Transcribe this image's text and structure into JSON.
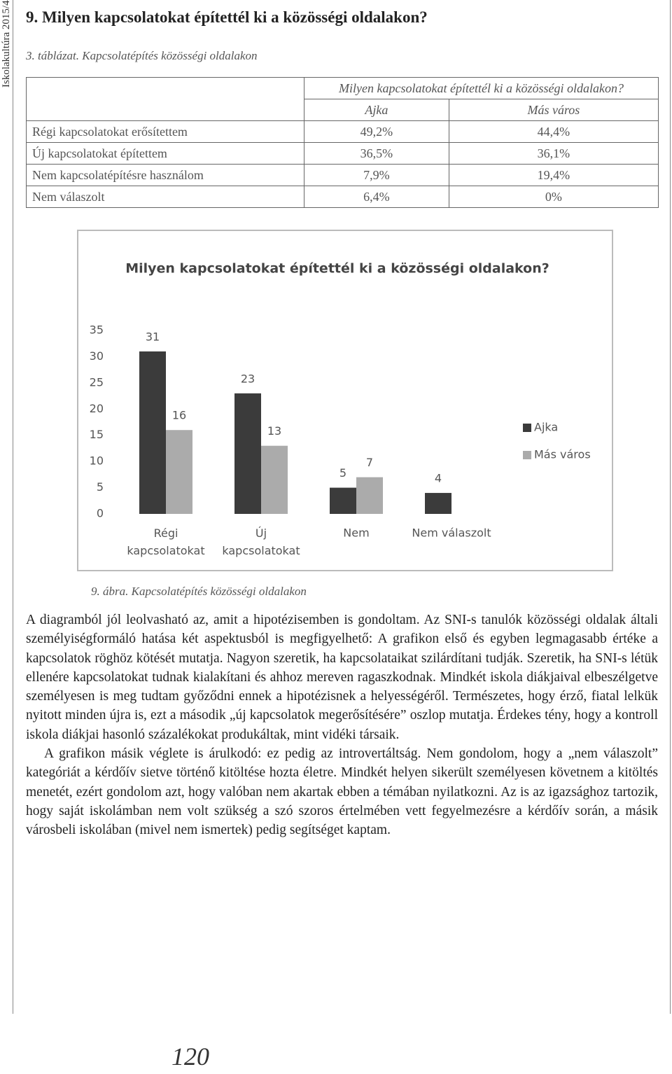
{
  "header": {
    "running_title": "Iskolakultúra 2015/4",
    "heading": "9. Milyen kapcsolatokat építettél ki a közösségi oldalakon?"
  },
  "table": {
    "caption": "3. táblázat. Kapcsolatépítés közösségi oldalakon",
    "group_header": "Milyen kapcsolatokat építettél ki a közösségi oldalakon?",
    "columns": [
      "Ajka",
      "Más város"
    ],
    "rows": [
      [
        "Régi kapcsolatokat erősítettem",
        "49,2%",
        "44,4%"
      ],
      [
        "Új kapcsolatokat építettem",
        "36,5%",
        "36,1%"
      ],
      [
        "Nem kapcsolatépítésre használom",
        "7,9%",
        "19,4%"
      ],
      [
        "Nem válaszolt",
        "6,4%",
        "0%"
      ]
    ]
  },
  "chart_data": {
    "type": "bar",
    "title": "Milyen kapcsolatokat építettél ki a közösségi oldalakon?",
    "categories": [
      "Régi\nkapcsolatokat",
      "Új\nkapcsolatokat",
      "Nem",
      "Nem válaszolt"
    ],
    "series": [
      {
        "name": "Ajka",
        "color": "#3b3b3b",
        "values": [
          31,
          23,
          5,
          4
        ]
      },
      {
        "name": "Más város",
        "color": "#ababab",
        "values": [
          16,
          13,
          7,
          null
        ]
      }
    ],
    "ylim": [
      0,
      35
    ],
    "yticks": [
      0,
      5,
      10,
      15,
      20,
      25,
      30,
      35
    ],
    "grid": false,
    "legend": "right"
  },
  "figure_caption": "9. ábra. Kapcsolatépítés közösségi oldalakon",
  "body": {
    "paragraphs": [
      "A diagramból jól leolvasható az, amit a hipotézisemben is gondoltam. Az SNI-s tanulók közösségi oldalak általi személyiségformáló hatása két aspektusból is megfigyelhető: A grafikon első és egyben legmagasabb értéke a kapcsolatok röghöz kötését mutatja. Nagyon szeretik, ha kapcsolataikat szilárdítani tudják. Szeretik, ha SNI-s létük ellenére kapcsolatokat tudnak kialakítani és ahhoz mereven ragaszkodnak. Mindkét iskola diákjaival elbeszélgetve személyesen is meg tudtam győződni ennek a hipotézisnek a helyességéről. Természetes, hogy érző, fiatal lelkük nyitott minden újra is, ezt a második „új kapcsolatok megerősítésére” oszlop mutatja. Érdekes tény, hogy a kontroll iskola diákjai hasonló százalékokat produkáltak, mint vidéki társaik.",
      "A grafikon másik véglete is árulkodó: ez pedig az introvertáltság. Nem gondolom, hogy a „nem válaszolt” kategóriát a kérdőív sietve történő kitöltése hozta életre. Mindkét helyen sikerült személyesen követnem a kitöltés menetét, ezért gondolom azt, hogy valóban nem akartak ebben a témában nyilatkozni. Az is az igazsághoz tartozik, hogy saját iskolámban nem volt szükség a szó szoros értelmében vett fegyelmezésre a kérdőív során, a másik városbeli iskolában (mivel nem ismertek) pedig segítséget kaptam."
    ]
  },
  "page_number": "120"
}
